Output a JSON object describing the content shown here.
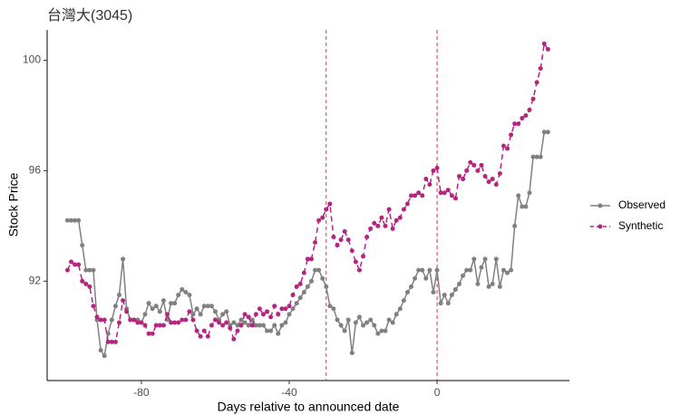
{
  "chart_data": {
    "type": "line",
    "title": "台灣大(3045)",
    "x_label": "Days relative to announced date",
    "y_label": "Stock Price",
    "x": [
      -100,
      -99,
      -98,
      -97,
      -96,
      -95,
      -94,
      -93,
      -92,
      -91,
      -90,
      -89,
      -88,
      -87,
      -86,
      -85,
      -84,
      -83,
      -82,
      -81,
      -80,
      -79,
      -78,
      -77,
      -76,
      -75,
      -74,
      -73,
      -72,
      -71,
      -70,
      -69,
      -68,
      -67,
      -66,
      -65,
      -64,
      -63,
      -62,
      -61,
      -60,
      -59,
      -58,
      -57,
      -56,
      -55,
      -54,
      -53,
      -52,
      -51,
      -50,
      -49,
      -48,
      -47,
      -46,
      -45,
      -44,
      -43,
      -42,
      -41,
      -40,
      -39,
      -38,
      -37,
      -36,
      -35,
      -34,
      -33,
      -32,
      -31,
      -30,
      -29,
      -28,
      -27,
      -26,
      -25,
      -24,
      -23,
      -22,
      -21,
      -20,
      -19,
      -18,
      -17,
      -16,
      -15,
      -14,
      -13,
      -12,
      -11,
      -10,
      -9,
      -8,
      -7,
      -6,
      -5,
      -4,
      -3,
      -2,
      -1,
      0,
      1,
      2,
      3,
      4,
      5,
      6,
      7,
      8,
      9,
      10,
      11,
      12,
      13,
      14,
      15,
      16,
      17,
      18,
      19,
      20,
      21,
      22,
      23,
      24,
      25,
      26,
      27,
      28,
      29,
      30
    ],
    "series": [
      {
        "name": "Observed",
        "color": "#808080",
        "dash": false,
        "values": [
          94.2,
          94.2,
          94.2,
          94.2,
          93.3,
          92.4,
          92.4,
          92.4,
          90.6,
          89.5,
          89.3,
          90.1,
          90.6,
          91.1,
          91.5,
          92.8,
          91.0,
          90.6,
          90.6,
          90.6,
          90.5,
          90.8,
          91.2,
          91.0,
          91.1,
          90.9,
          91.3,
          90.6,
          91.2,
          91.2,
          91.5,
          91.7,
          91.6,
          91.5,
          90.8,
          91.0,
          90.8,
          91.1,
          91.1,
          91.1,
          90.9,
          90.6,
          90.8,
          90.9,
          90.4,
          90.5,
          90.4,
          90.6,
          90.5,
          90.4,
          90.6,
          90.4,
          90.4,
          90.4,
          90.2,
          90.2,
          90.4,
          90.1,
          90.4,
          90.5,
          90.8,
          91.0,
          91.2,
          91.4,
          91.6,
          91.8,
          92.0,
          92.4,
          92.4,
          92.1,
          91.8,
          91.1,
          91.0,
          90.6,
          90.4,
          90.2,
          90.6,
          89.4,
          90.5,
          90.7,
          90.4,
          90.5,
          90.6,
          90.4,
          90.1,
          90.2,
          90.2,
          90.6,
          90.5,
          90.8,
          91.0,
          91.3,
          91.6,
          91.8,
          92.1,
          92.4,
          92.4,
          92.1,
          92.4,
          91.6,
          92.4,
          91.2,
          91.5,
          91.2,
          91.5,
          91.7,
          91.9,
          92.2,
          92.4,
          92.4,
          92.8,
          91.9,
          92.5,
          92.8,
          91.8,
          91.9,
          92.8,
          91.8,
          92.4,
          92.3,
          92.4,
          94.0,
          95.1,
          94.7,
          94.7,
          95.2,
          96.5,
          96.5,
          96.5,
          97.4,
          97.4
        ]
      },
      {
        "name": "Synthetic",
        "color": "#b5257f",
        "dash": true,
        "values": [
          92.4,
          92.7,
          92.6,
          92.6,
          92.0,
          91.9,
          91.8,
          91.1,
          90.7,
          90.6,
          90.6,
          89.8,
          89.8,
          89.8,
          90.5,
          91.3,
          90.9,
          90.6,
          90.6,
          90.5,
          90.5,
          90.4,
          90.1,
          90.1,
          90.4,
          90.4,
          90.4,
          90.8,
          90.5,
          90.5,
          90.5,
          90.6,
          90.6,
          90.9,
          90.6,
          90.2,
          90.0,
          90.2,
          90.0,
          90.4,
          90.6,
          90.5,
          90.4,
          90.5,
          90.3,
          89.9,
          90.2,
          90.4,
          90.8,
          90.7,
          90.4,
          90.8,
          91.0,
          90.8,
          90.9,
          90.7,
          91.1,
          90.8,
          91.0,
          91.0,
          91.1,
          91.5,
          91.8,
          91.9,
          92.3,
          92.8,
          92.8,
          93.4,
          94.2,
          94.3,
          94.6,
          94.8,
          93.6,
          93.3,
          93.5,
          93.8,
          93.5,
          93.1,
          92.7,
          92.4,
          92.9,
          93.6,
          93.9,
          94.1,
          94.0,
          94.3,
          94.0,
          94.6,
          93.9,
          94.2,
          94.3,
          94.6,
          94.8,
          95.1,
          95.1,
          95.2,
          95.1,
          95.7,
          95.5,
          96.0,
          96.1,
          95.2,
          95.2,
          95.3,
          95.1,
          95.0,
          95.8,
          95.7,
          96.0,
          96.3,
          96.2,
          96.0,
          96.2,
          95.8,
          95.6,
          95.7,
          95.5,
          95.9,
          96.9,
          96.8,
          97.3,
          97.7,
          97.7,
          97.9,
          98.0,
          98.2,
          98.6,
          99.2,
          99.7,
          100.6,
          100.4
        ]
      }
    ],
    "vlines": [
      -30,
      0
    ],
    "vline_color": "#d6334a",
    "xlim": [
      -105.5,
      35.8
    ],
    "ylim": [
      88.4,
      101.1
    ],
    "xticks": [
      -80,
      -40,
      0
    ],
    "yticks": [
      92,
      96,
      100
    ],
    "grid": false,
    "legend": "right"
  }
}
